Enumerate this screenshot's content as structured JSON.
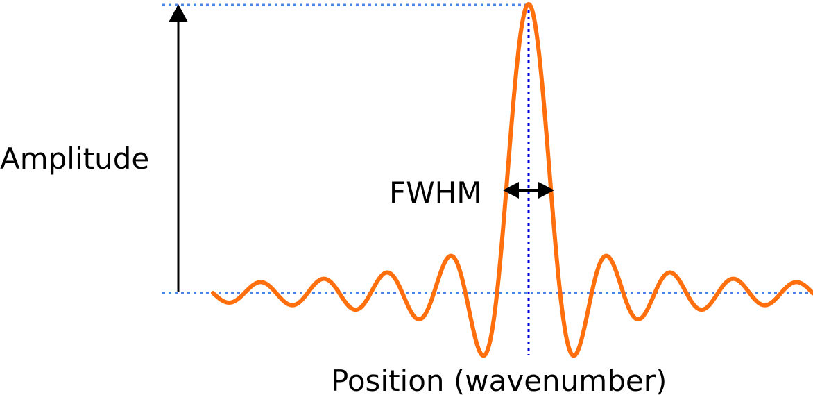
{
  "labels": {
    "amplitude": "Amplitude",
    "fwhm": "FWHM",
    "position": "Position (wavenumber)"
  },
  "colors": {
    "curve": "#ff6f0e",
    "guide_lines": "#4a86e8",
    "center_line": "#0000dd",
    "arrows": "#000000"
  },
  "curve": {
    "type": "sinc",
    "peak_amplitude": 1.0,
    "sidelobes_each_side": 5
  }
}
